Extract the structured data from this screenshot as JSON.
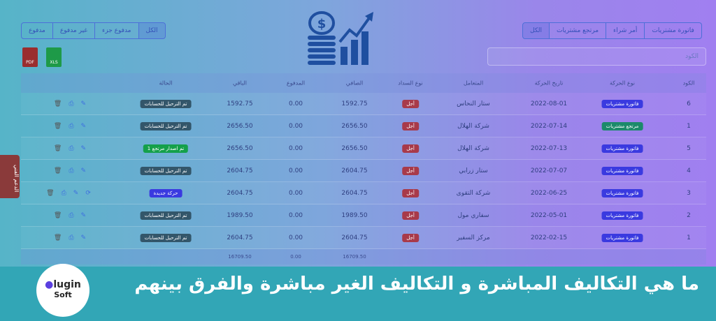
{
  "colors": {
    "accent": "#3a3ae0",
    "success": "#1c8a6a",
    "danger": "#a83a4a",
    "band": "#32a6b6"
  },
  "left_filters": [
    "مدفوع",
    "غير مدفوع",
    "مدفوع جزء",
    "الكل"
  ],
  "right_filters": [
    "فاتورة مشتريات",
    "أمر شراء",
    "مرتجع مشتريات",
    "الكل"
  ],
  "search": {
    "placeholder": "الكود"
  },
  "export": {
    "pdf": "PDF",
    "xls": "XLS"
  },
  "columns": [
    "الكود",
    "نوع الحركة",
    "تاريخ الحركة",
    "المتعامل",
    "نوع السداد",
    "الصافي",
    "المدفوع",
    "الباقي",
    "الحالة"
  ],
  "rows": [
    {
      "code": "6",
      "type": "فاتورة مشتريات",
      "type_color": "blue",
      "date": "2022-08-01",
      "party": "ستار النحاس",
      "pay": "أجل",
      "net": "1592.75",
      "paid": "0.00",
      "rest": "1592.75",
      "status": "تم الترحيل للحسابات",
      "status_color": "dark"
    },
    {
      "code": "1",
      "type": "مرتجع مشتريات",
      "type_color": "green",
      "date": "2022-07-14",
      "party": "شركة الهلال",
      "pay": "أجل",
      "net": "2656.50",
      "paid": "0.00",
      "rest": "2656.50",
      "status": "تم الترحيل للحسابات",
      "status_color": "dark"
    },
    {
      "code": "5",
      "type": "فاتورة مشتريات",
      "type_color": "blue",
      "date": "2022-07-13",
      "party": "شركة الهلال",
      "pay": "أجل",
      "net": "2656.50",
      "paid": "0.00",
      "rest": "2656.50",
      "status": "تم اصدار مرتجع 1",
      "status_color": "lgreen"
    },
    {
      "code": "4",
      "type": "فاتورة مشتريات",
      "type_color": "blue",
      "date": "2022-07-07",
      "party": "ستار زرابي",
      "pay": "أجل",
      "net": "2604.75",
      "paid": "0.00",
      "rest": "2604.75",
      "status": "تم الترحيل للحسابات",
      "status_color": "dark"
    },
    {
      "code": "3",
      "type": "فاتورة مشتريات",
      "type_color": "blue",
      "date": "2022-06-25",
      "party": "شركة التقوى",
      "pay": "أجل",
      "net": "2604.75",
      "paid": "0.00",
      "rest": "2604.75",
      "status": "حركة جديدة",
      "status_color": "blue"
    },
    {
      "code": "2",
      "type": "فاتورة مشتريات",
      "type_color": "blue",
      "date": "2022-05-01",
      "party": "سفاري مول",
      "pay": "أجل",
      "net": "1989.50",
      "paid": "0.00",
      "rest": "1989.50",
      "status": "تم الترحيل للحسابات",
      "status_color": "dark"
    },
    {
      "code": "1",
      "type": "فاتورة مشتريات",
      "type_color": "blue",
      "date": "2022-02-15",
      "party": "مركز السفير",
      "pay": "أجل",
      "net": "2604.75",
      "paid": "0.00",
      "rest": "2604.75",
      "status": "تم الترحيل للحسابات",
      "status_color": "dark"
    }
  ],
  "totals": {
    "net": "16709.50",
    "paid": "0.00",
    "rest": "16709.50"
  },
  "support_tab": "الدعم الفني",
  "headline": "ما هي التكاليف المباشرة و التكاليف الغير مباشرة والفرق بينهم",
  "logo": {
    "line1": "Plugin",
    "line2": "Soft"
  }
}
